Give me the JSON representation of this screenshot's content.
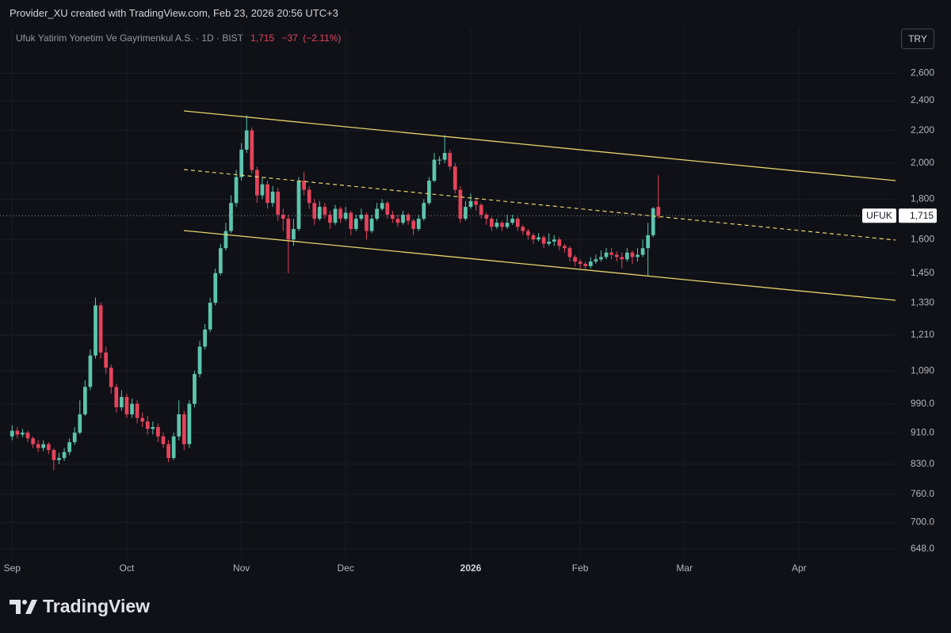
{
  "header": {
    "attribution": "Provider_XU created with TradingView.com, Feb 23, 2026 20:56 UTC+3",
    "symbol": "Ufuk Yatirim Yonetim Ve Gayrimenkul A.S. · 1D · BIST",
    "price": "1,715",
    "change": "−37",
    "change_percent": "(−2.11%)",
    "currency": "TRY"
  },
  "chart_data": {
    "type": "candlestick",
    "log_scale": true,
    "grid": true,
    "up_color": "#5cc4ad",
    "down_color": "#e5435a",
    "ylim": [
      630,
      2970
    ],
    "yticks": [
      {
        "value": 648,
        "label": "648.0"
      },
      {
        "value": 700,
        "label": "700.0"
      },
      {
        "value": 760,
        "label": "760.0"
      },
      {
        "value": 830,
        "label": "830.0"
      },
      {
        "value": 910,
        "label": "910.0"
      },
      {
        "value": 990,
        "label": "990.0"
      },
      {
        "value": 1090,
        "label": "1,090"
      },
      {
        "value": 1210,
        "label": "1,210"
      },
      {
        "value": 1330,
        "label": "1,330"
      },
      {
        "value": 1450,
        "label": "1,450"
      },
      {
        "value": 1600,
        "label": "1,600"
      },
      {
        "value": 1800,
        "label": "1,800"
      },
      {
        "value": 2000,
        "label": "2,000"
      },
      {
        "value": 2200,
        "label": "2,200"
      },
      {
        "value": 2400,
        "label": "2,400"
      },
      {
        "value": 2600,
        "label": "2,600"
      }
    ],
    "symbol_label": "UFUK",
    "last_price": {
      "value": 1715,
      "label": "1,715"
    },
    "categories": [
      "Sep",
      null,
      null,
      null,
      null,
      null,
      null,
      null,
      null,
      null,
      null,
      null,
      null,
      null,
      null,
      null,
      null,
      null,
      null,
      null,
      null,
      null,
      "Oct",
      null,
      null,
      null,
      null,
      null,
      null,
      null,
      null,
      null,
      null,
      null,
      null,
      null,
      null,
      null,
      null,
      null,
      null,
      null,
      null,
      null,
      "Nov",
      null,
      null,
      null,
      null,
      null,
      null,
      null,
      null,
      null,
      null,
      null,
      null,
      null,
      null,
      null,
      null,
      null,
      null,
      null,
      "Dec",
      null,
      null,
      null,
      null,
      null,
      null,
      null,
      null,
      null,
      null,
      null,
      null,
      null,
      null,
      null,
      null,
      null,
      null,
      null,
      null,
      null,
      null,
      null,
      "2026",
      null,
      null,
      null,
      null,
      null,
      null,
      null,
      null,
      null,
      null,
      null,
      null,
      null,
      null,
      null,
      null,
      null,
      null,
      null,
      null,
      "Feb",
      null,
      null,
      null,
      null,
      null,
      null,
      null,
      null,
      null,
      null,
      null,
      null,
      null,
      null,
      null,
      null,
      null,
      null,
      null,
      "Mar",
      null,
      null,
      null,
      null,
      null,
      null,
      null,
      null,
      null,
      null,
      null,
      null,
      null,
      null,
      null,
      null,
      null,
      null,
      null,
      null,
      null,
      "Apr",
      null,
      null,
      null,
      null,
      null,
      null,
      null,
      null,
      null,
      null,
      null,
      null,
      null,
      null,
      null,
      null,
      null,
      null
    ],
    "open": [
      900,
      915,
      905,
      910,
      895,
      880,
      870,
      880,
      865,
      840,
      845,
      860,
      885,
      910,
      960,
      1040,
      1140,
      1320,
      1150,
      1100,
      1040,
      980,
      1010,
      960,
      990,
      950,
      940,
      920,
      925,
      900,
      880,
      845,
      900,
      960,
      880,
      990,
      1080,
      1170,
      1230,
      1330,
      1450,
      1560,
      1640,
      1780,
      1920,
      2080,
      2200,
      1960,
      1820,
      1880,
      1780,
      1840,
      1720,
      1700,
      1600,
      1650,
      1900,
      1850,
      1780,
      1700,
      1760,
      1720,
      1680,
      1750,
      1700,
      1730,
      1650,
      1700,
      1720,
      1640,
      1700,
      1750,
      1780,
      1720,
      1700,
      1680,
      1720,
      1690,
      1650,
      1700,
      1780,
      1900,
      2020,
      2020,
      2060,
      1980,
      1850,
      1700,
      1760,
      1790,
      1770,
      1720,
      1700,
      1660,
      1680,
      1660,
      1680,
      1700,
      1660,
      1640,
      1620,
      1600,
      1610,
      1580,
      1590,
      1600,
      1570,
      1560,
      1520,
      1500,
      1490,
      1480,
      1500,
      1510,
      1520,
      1540,
      1530,
      1520,
      1510,
      1540,
      1520,
      1530,
      1560,
      1620,
      1760,
      null,
      null,
      null,
      null,
      null,
      null,
      null,
      null,
      null,
      null,
      null,
      null,
      null,
      null,
      null,
      null,
      null,
      null,
      null,
      null,
      null,
      null,
      null,
      null,
      null,
      null,
      null,
      null,
      null,
      null,
      null,
      null,
      null,
      null,
      null,
      null,
      null,
      null,
      null,
      null,
      null,
      null,
      null,
      null,
      null
    ],
    "high": [
      930,
      925,
      920,
      915,
      900,
      890,
      890,
      885,
      870,
      858,
      870,
      895,
      925,
      1000,
      1060,
      1160,
      1350,
      1330,
      1170,
      1110,
      1050,
      1030,
      1020,
      1005,
      1000,
      965,
      955,
      940,
      935,
      910,
      890,
      910,
      1000,
      970,
      1000,
      1090,
      1190,
      1250,
      1350,
      1470,
      1580,
      1680,
      1820,
      1960,
      2120,
      2300,
      2220,
      1980,
      1920,
      1900,
      1870,
      1860,
      1750,
      1720,
      1700,
      1920,
      1950,
      1870,
      1800,
      1790,
      1780,
      1740,
      1770,
      1760,
      1760,
      1740,
      1720,
      1750,
      1730,
      1720,
      1780,
      1800,
      1790,
      1740,
      1720,
      1740,
      1730,
      1700,
      1720,
      1800,
      1920,
      2060,
      2040,
      2170,
      2080,
      2000,
      1870,
      1790,
      1830,
      1800,
      1780,
      1730,
      1710,
      1700,
      1690,
      1720,
      1720,
      1710,
      1670,
      1650,
      1630,
      1630,
      1620,
      1630,
      1620,
      1610,
      1580,
      1570,
      1530,
      1510,
      1500,
      1520,
      1530,
      1550,
      1560,
      1560,
      1545,
      1540,
      1560,
      1550,
      1560,
      1600,
      1680,
      1760,
      1930,
      null,
      null,
      null,
      null,
      null,
      null,
      null,
      null,
      null,
      null,
      null,
      null,
      null,
      null,
      null,
      null,
      null,
      null,
      null,
      null,
      null,
      null,
      null,
      null,
      null,
      null,
      null,
      null,
      null,
      null,
      null,
      null,
      null,
      null,
      null,
      null,
      null,
      null,
      null,
      null,
      null,
      null,
      null,
      null,
      null
    ],
    "low": [
      890,
      895,
      898,
      885,
      870,
      860,
      862,
      855,
      815,
      830,
      838,
      852,
      878,
      905,
      955,
      1030,
      1130,
      1130,
      1080,
      1020,
      965,
      970,
      950,
      950,
      935,
      925,
      905,
      905,
      885,
      870,
      835,
      840,
      890,
      865,
      870,
      980,
      1070,
      1160,
      1220,
      1320,
      1440,
      1550,
      1630,
      1760,
      1900,
      2060,
      1940,
      1780,
      1800,
      1750,
      1760,
      1690,
      1640,
      1450,
      1570,
      1640,
      1820,
      1750,
      1670,
      1690,
      1700,
      1650,
      1670,
      1680,
      1690,
      1620,
      1640,
      1690,
      1600,
      1630,
      1690,
      1740,
      1700,
      1680,
      1660,
      1670,
      1670,
      1620,
      1640,
      1690,
      1770,
      1890,
      1990,
      2000,
      1960,
      1830,
      1680,
      1690,
      1750,
      1740,
      1700,
      1670,
      1640,
      1650,
      1640,
      1650,
      1670,
      1640,
      1620,
      1600,
      1580,
      1590,
      1560,
      1570,
      1570,
      1550,
      1540,
      1500,
      1480,
      1470,
      1465,
      1470,
      1490,
      1500,
      1510,
      1510,
      1500,
      1470,
      1500,
      1490,
      1500,
      1520,
      1440,
      1610,
      1700,
      null,
      null,
      null,
      null,
      null,
      null,
      null,
      null,
      null,
      null,
      null,
      null,
      null,
      null,
      null,
      null,
      null,
      null,
      null,
      null,
      null,
      null,
      null,
      null,
      null,
      null,
      null,
      null,
      null,
      null,
      null,
      null,
      null,
      null,
      null,
      null,
      null,
      null,
      null,
      null,
      null,
      null,
      null,
      null,
      null
    ],
    "close": [
      915,
      905,
      910,
      895,
      880,
      870,
      880,
      865,
      840,
      845,
      860,
      885,
      910,
      960,
      1040,
      1140,
      1320,
      1150,
      1100,
      1040,
      980,
      1010,
      960,
      990,
      950,
      940,
      920,
      925,
      900,
      880,
      845,
      900,
      960,
      880,
      990,
      1080,
      1170,
      1230,
      1330,
      1450,
      1560,
      1640,
      1780,
      1920,
      2080,
      2200,
      1960,
      1820,
      1880,
      1780,
      1840,
      1720,
      1700,
      1600,
      1650,
      1900,
      1850,
      1780,
      1700,
      1760,
      1720,
      1680,
      1750,
      1700,
      1730,
      1650,
      1700,
      1720,
      1640,
      1700,
      1750,
      1780,
      1720,
      1700,
      1680,
      1720,
      1690,
      1650,
      1700,
      1780,
      1900,
      2020,
      2020,
      2060,
      1980,
      1850,
      1700,
      1760,
      1790,
      1770,
      1720,
      1700,
      1660,
      1680,
      1660,
      1680,
      1700,
      1660,
      1640,
      1620,
      1600,
      1610,
      1580,
      1590,
      1600,
      1570,
      1560,
      1520,
      1500,
      1490,
      1480,
      1500,
      1510,
      1520,
      1540,
      1530,
      1520,
      1510,
      1540,
      1520,
      1530,
      1560,
      1620,
      1752,
      1715,
      null,
      null,
      null,
      null,
      null,
      null,
      null,
      null,
      null,
      null,
      null,
      null,
      null,
      null,
      null,
      null,
      null,
      null,
      null,
      null,
      null,
      null,
      null,
      null,
      null,
      null,
      null,
      null,
      null,
      null,
      null,
      null,
      null,
      null,
      null,
      null,
      null,
      null,
      null,
      null,
      null,
      null,
      null,
      null,
      null
    ]
  },
  "footer": {
    "logo": "TradingView"
  }
}
